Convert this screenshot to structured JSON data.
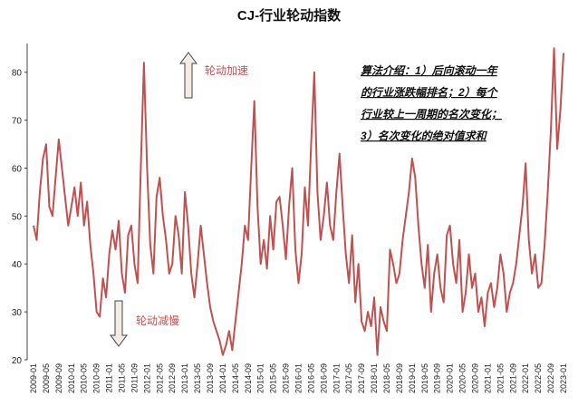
{
  "chart_data": {
    "type": "line",
    "title": "CJ-行业轮动指数",
    "annotations": [
      "轮动加速",
      "轮动减慢"
    ],
    "note_lines": [
      "算法介绍：1）后向滚动一年",
      "的行业涨跌幅排名；2）每个",
      "行业较上一周期的名次变化；",
      "3）名次变化的绝对值求和"
    ],
    "color": "#bf5151",
    "categories": [
      "2009-01",
      null,
      null,
      null,
      "2009-05",
      null,
      null,
      null,
      "2009-09",
      null,
      null,
      null,
      "2010-01",
      null,
      null,
      null,
      "2010-05",
      null,
      null,
      null,
      "2010-09",
      null,
      null,
      null,
      "2011-01",
      null,
      null,
      null,
      "2011-05",
      null,
      null,
      null,
      "2011-09",
      null,
      null,
      null,
      "2012-01",
      null,
      null,
      null,
      "2012-05",
      null,
      null,
      null,
      "2012-09",
      null,
      null,
      null,
      "2013-01",
      null,
      null,
      null,
      "2013-05",
      null,
      null,
      null,
      "2013-09",
      null,
      null,
      null,
      "2014-01",
      null,
      null,
      null,
      "2014-05",
      null,
      null,
      null,
      "2014-09",
      null,
      null,
      null,
      "2015-01",
      null,
      null,
      null,
      "2015-05",
      null,
      null,
      null,
      "2015-09",
      null,
      null,
      null,
      "2016-01",
      null,
      null,
      null,
      "2016-05",
      null,
      null,
      null,
      "2016-09",
      null,
      null,
      null,
      "2017-01",
      null,
      null,
      null,
      "2017-05",
      null,
      null,
      null,
      "2017-09",
      null,
      null,
      null,
      "2018-01",
      null,
      null,
      null,
      "2018-05",
      null,
      null,
      null,
      "2018-09",
      null,
      null,
      null,
      "2019-01",
      null,
      null,
      null,
      "2019-05",
      null,
      null,
      null,
      "2019-09",
      null,
      null,
      null,
      "2020-01",
      null,
      null,
      null,
      "2020-05",
      null,
      null,
      null,
      "2020-09",
      null,
      null,
      null,
      "2021-01",
      null,
      null,
      null,
      "2021-05",
      null,
      null,
      null,
      "2021-09",
      null,
      null,
      null,
      "2022-01",
      null,
      null,
      null,
      "2022-05",
      null,
      null,
      null,
      "2022-09",
      null,
      null,
      null,
      "2023-01"
    ],
    "values": [
      48,
      45,
      55,
      62,
      65,
      52,
      50,
      58,
      66,
      60,
      54,
      48,
      52,
      56,
      50,
      57,
      48,
      53,
      44,
      38,
      30,
      29,
      37,
      33,
      42,
      47,
      43,
      49,
      38,
      34,
      46,
      48,
      40,
      36,
      60,
      82,
      60,
      44,
      38,
      54,
      58,
      50,
      45,
      38,
      40,
      50,
      46,
      38,
      55,
      48,
      38,
      33,
      40,
      48,
      42,
      36,
      31,
      28,
      26,
      24,
      21,
      23,
      26,
      22,
      28,
      34,
      40,
      48,
      45,
      60,
      74,
      52,
      40,
      45,
      39,
      50,
      43,
      53,
      54,
      48,
      41,
      52,
      60,
      43,
      36,
      42,
      56,
      48,
      65,
      80,
      55,
      45,
      50,
      57,
      48,
      45,
      55,
      63,
      52,
      42,
      36,
      46,
      32,
      40,
      28,
      26,
      30,
      27,
      33,
      21,
      31,
      28,
      26,
      43,
      40,
      36,
      38,
      45,
      50,
      55,
      62,
      58,
      48,
      40,
      35,
      44,
      30,
      38,
      42,
      35,
      32,
      46,
      48,
      40,
      36,
      45,
      30,
      34,
      42,
      35,
      38,
      30,
      33,
      27,
      34,
      36,
      31,
      35,
      42,
      38,
      30,
      34,
      36,
      40,
      46,
      52,
      61,
      45,
      38,
      42,
      35,
      36,
      44,
      55,
      68,
      85,
      64,
      72,
      84
    ],
    "ylim": [
      20,
      86
    ],
    "yticks": [
      20,
      30,
      40,
      50,
      60,
      70,
      80
    ]
  }
}
